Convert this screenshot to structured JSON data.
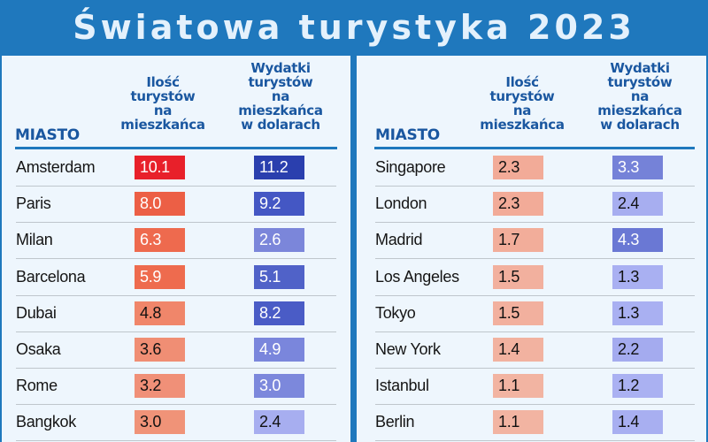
{
  "title": "Światowa turystyka 2023",
  "headers": {
    "city": "MIASTO",
    "tourists": [
      "Ilość",
      "turystów",
      "na",
      "mieszkańca"
    ],
    "spending": [
      "Wydatki",
      "turystów",
      "na",
      "mieszkańca",
      "w dolarach"
    ]
  },
  "colors": {
    "title_bar": "#1f78bd",
    "panel_bg": "#eef6fd",
    "header_text": "#1a57a0"
  },
  "left_rows": [
    {
      "city": "Amsterdam",
      "tourists": "10.1",
      "spending": "11.2",
      "t_bg": "#e8202a",
      "t_fg": "#ffffff",
      "s_bg": "#2a3fae",
      "s_fg": "#ffffff"
    },
    {
      "city": "Paris",
      "tourists": "8.0",
      "spending": "9.2",
      "t_bg": "#ec5f45",
      "t_fg": "#ffffff",
      "s_bg": "#4457c4",
      "s_fg": "#ffffff"
    },
    {
      "city": "Milan",
      "tourists": "6.3",
      "spending": "2.6",
      "t_bg": "#ee6a4e",
      "t_fg": "#ffffff",
      "s_bg": "#7b86da",
      "s_fg": "#ffffff"
    },
    {
      "city": "Barcelona",
      "tourists": "5.9",
      "spending": "5.1",
      "t_bg": "#ee6b4e",
      "t_fg": "#ffffff",
      "s_bg": "#5062c8",
      "s_fg": "#ffffff"
    },
    {
      "city": "Dubai",
      "tourists": "4.8",
      "spending": "8.2",
      "t_bg": "#f0866a",
      "t_fg": "#111111",
      "s_bg": "#4a5cc6",
      "s_fg": "#ffffff"
    },
    {
      "city": "Osaka",
      "tourists": "3.6",
      "spending": "4.9",
      "t_bg": "#f08e74",
      "t_fg": "#111111",
      "s_bg": "#7a86dc",
      "s_fg": "#ffffff"
    },
    {
      "city": "Rome",
      "tourists": "3.2",
      "spending": "3.0",
      "t_bg": "#f09078",
      "t_fg": "#111111",
      "s_bg": "#7c88dc",
      "s_fg": "#ffffff"
    },
    {
      "city": "Bangkok",
      "tourists": "3.0",
      "spending": "2.4",
      "t_bg": "#f09378",
      "t_fg": "#111111",
      "s_bg": "#a7aef0",
      "s_fg": "#111111"
    }
  ],
  "right_rows": [
    {
      "city": "Singapore",
      "tourists": "2.3",
      "spending": "3.3",
      "t_bg": "#f2ab98",
      "t_fg": "#111111",
      "s_bg": "#7582d8",
      "s_fg": "#ffffff"
    },
    {
      "city": "London",
      "tourists": "2.3",
      "spending": "2.4",
      "t_bg": "#f2ab98",
      "t_fg": "#111111",
      "s_bg": "#a7aef0",
      "s_fg": "#111111"
    },
    {
      "city": "Madrid",
      "tourists": "1.7",
      "spending": "4.3",
      "t_bg": "#f2ad9a",
      "t_fg": "#111111",
      "s_bg": "#6a78d4",
      "s_fg": "#ffffff"
    },
    {
      "city": "Los Angeles",
      "tourists": "1.5",
      "spending": "1.3",
      "t_bg": "#f2b09e",
      "t_fg": "#111111",
      "s_bg": "#a9b0f2",
      "s_fg": "#111111"
    },
    {
      "city": "Tokyo",
      "tourists": "1.5",
      "spending": "1.3",
      "t_bg": "#f2b09e",
      "t_fg": "#111111",
      "s_bg": "#a9b0f2",
      "s_fg": "#111111"
    },
    {
      "city": "New York",
      "tourists": "1.4",
      "spending": "2.2",
      "t_bg": "#f2b2a0",
      "t_fg": "#111111",
      "s_bg": "#a4abef",
      "s_fg": "#111111"
    },
    {
      "city": "Istanbul",
      "tourists": "1.1",
      "spending": "1.2",
      "t_bg": "#f2b4a2",
      "t_fg": "#111111",
      "s_bg": "#aab1f2",
      "s_fg": "#111111"
    },
    {
      "city": "Berlin",
      "tourists": "1.1",
      "spending": "1.4",
      "t_bg": "#f2b4a2",
      "t_fg": "#111111",
      "s_bg": "#a8aff1",
      "s_fg": "#111111"
    }
  ],
  "chart_data": {
    "type": "table",
    "title": "Światowa turystyka 2023",
    "columns": [
      "MIASTO",
      "Ilość turystów na mieszkańca",
      "Wydatki turystów na mieszkańca w dolarach"
    ],
    "categories": [
      "Amsterdam",
      "Paris",
      "Milan",
      "Barcelona",
      "Dubai",
      "Osaka",
      "Rome",
      "Bangkok",
      "Singapore",
      "London",
      "Madrid",
      "Los Angeles",
      "Tokyo",
      "New York",
      "Istanbul",
      "Berlin"
    ],
    "series": [
      {
        "name": "Ilość turystów na mieszkańca",
        "values": [
          10.1,
          8.0,
          6.3,
          5.9,
          4.8,
          3.6,
          3.2,
          3.0,
          2.3,
          2.3,
          1.7,
          1.5,
          1.5,
          1.4,
          1.1,
          1.1
        ]
      },
      {
        "name": "Wydatki turystów na mieszkańca w dolarach",
        "values": [
          11.2,
          9.2,
          2.6,
          5.1,
          8.2,
          4.9,
          3.0,
          2.4,
          3.3,
          2.4,
          4.3,
          1.3,
          1.3,
          2.2,
          1.2,
          1.4
        ]
      }
    ],
    "legend_position": "none",
    "grid": false
  }
}
